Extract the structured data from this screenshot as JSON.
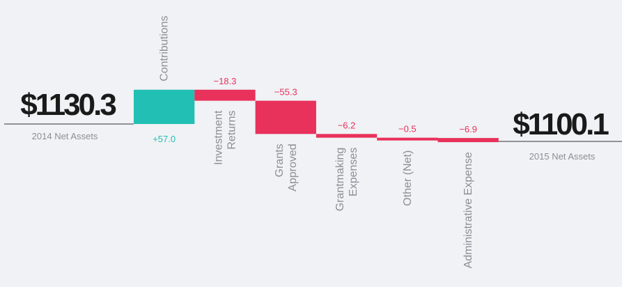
{
  "chart_data": {
    "type": "waterfall",
    "start": {
      "value": "$1130.3",
      "label": "2014 Net Assets",
      "amount": 1130.3
    },
    "end": {
      "value": "$1100.1",
      "label": "2015 Net Assets",
      "amount": 1100.1
    },
    "steps": [
      {
        "category": [
          "Contributions"
        ],
        "value": 57.0,
        "value_label": "+57.0"
      },
      {
        "category": [
          "Investment",
          "Returns"
        ],
        "value": -18.3,
        "value_label": "−18.3"
      },
      {
        "category": [
          "Grants",
          "Approved"
        ],
        "value": -55.3,
        "value_label": "−55.3"
      },
      {
        "category": [
          "Grantmaking",
          "Expenses"
        ],
        "value": -6.2,
        "value_label": "−6.2"
      },
      {
        "category": [
          "Other (Net)"
        ],
        "value": -0.5,
        "value_label": "−0.5"
      },
      {
        "category": [
          "Administrative Expense"
        ],
        "value": -6.9,
        "value_label": "−6.9"
      }
    ],
    "colors": {
      "increase": "#22bfb4",
      "decrease": "#e8315b",
      "line": "#555a60"
    }
  }
}
